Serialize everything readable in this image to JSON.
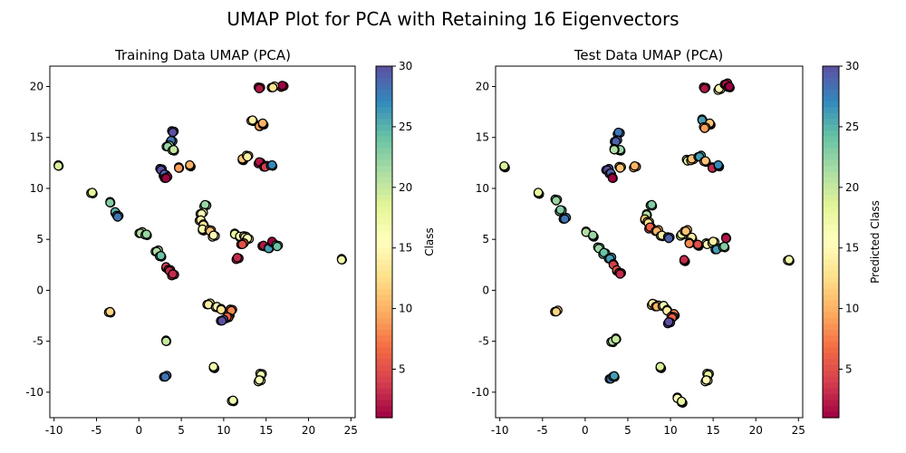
{
  "suptitle": "UMAP Plot for PCA with Retaining 16 Eigenvectors",
  "colormap": [
    "#9e0142",
    "#d53e4f",
    "#f46d43",
    "#fdae61",
    "#fee08b",
    "#ffffbf",
    "#e6f598",
    "#abdda4",
    "#66c2a5",
    "#3288bd",
    "#5e4fa2"
  ],
  "point_edge_color": "#000000",
  "chart_data": [
    {
      "type": "scatter",
      "title": "Training Data UMAP (PCA)",
      "xlabel": "",
      "ylabel": "",
      "xlim": [
        -10.5,
        25.5
      ],
      "ylim": [
        -12.5,
        22
      ],
      "xticks": [
        -10,
        -5,
        0,
        5,
        10,
        15,
        20,
        25
      ],
      "yticks": [
        -10,
        -5,
        0,
        5,
        10,
        15,
        20
      ],
      "colorbar": {
        "label": "Class",
        "range": [
          1,
          30
        ],
        "ticks": [
          5,
          10,
          15,
          20,
          25,
          30
        ]
      },
      "points": [
        {
          "x": 14.2,
          "y": 19.8,
          "class": 2
        },
        {
          "x": 16.9,
          "y": 20.1,
          "class": 1
        },
        {
          "x": 15.8,
          "y": 19.9,
          "class": 13
        },
        {
          "x": 13.4,
          "y": 16.7,
          "class": 14
        },
        {
          "x": 14.2,
          "y": 16.1,
          "class": 9
        },
        {
          "x": 14.6,
          "y": 16.4,
          "class": 10
        },
        {
          "x": 4.0,
          "y": 15.5,
          "class": 30
        },
        {
          "x": 3.8,
          "y": 14.7,
          "class": 28
        },
        {
          "x": 3.4,
          "y": 14.1,
          "class": 22
        },
        {
          "x": 4.1,
          "y": 13.8,
          "class": 20
        },
        {
          "x": -9.5,
          "y": 12.2,
          "class": 19
        },
        {
          "x": 12.2,
          "y": 12.9,
          "class": 11
        },
        {
          "x": 12.8,
          "y": 13.1,
          "class": 14
        },
        {
          "x": 14.2,
          "y": 12.6,
          "class": 2
        },
        {
          "x": 14.9,
          "y": 12.1,
          "class": 4
        },
        {
          "x": 15.7,
          "y": 12.3,
          "class": 27
        },
        {
          "x": 4.7,
          "y": 12.0,
          "class": 9
        },
        {
          "x": 6.0,
          "y": 12.3,
          "class": 10
        },
        {
          "x": 2.6,
          "y": 11.8,
          "class": 30
        },
        {
          "x": 3.0,
          "y": 11.4,
          "class": 29
        },
        {
          "x": 3.2,
          "y": 11.0,
          "class": 1
        },
        {
          "x": -5.5,
          "y": 9.6,
          "class": 18
        },
        {
          "x": -3.4,
          "y": 8.6,
          "class": 23
        },
        {
          "x": -2.8,
          "y": 7.7,
          "class": 25
        },
        {
          "x": -2.5,
          "y": 7.2,
          "class": 28
        },
        {
          "x": 7.8,
          "y": 8.4,
          "class": 22
        },
        {
          "x": 7.4,
          "y": 7.5,
          "class": 16
        },
        {
          "x": 7.3,
          "y": 6.9,
          "class": 14
        },
        {
          "x": 7.6,
          "y": 6.4,
          "class": 13
        },
        {
          "x": 7.5,
          "y": 6.0,
          "class": 17
        },
        {
          "x": 8.4,
          "y": 5.8,
          "class": 11
        },
        {
          "x": 8.8,
          "y": 5.4,
          "class": 15
        },
        {
          "x": 0.2,
          "y": 5.6,
          "class": 21
        },
        {
          "x": 0.9,
          "y": 5.5,
          "class": 22
        },
        {
          "x": 11.3,
          "y": 5.5,
          "class": 18
        },
        {
          "x": 11.9,
          "y": 5.3,
          "class": 15
        },
        {
          "x": 12.5,
          "y": 5.2,
          "class": 14
        },
        {
          "x": 12.8,
          "y": 5.1,
          "class": 16
        },
        {
          "x": 12.2,
          "y": 4.5,
          "class": 5
        },
        {
          "x": 14.7,
          "y": 4.4,
          "class": 2
        },
        {
          "x": 15.3,
          "y": 4.1,
          "class": 26
        },
        {
          "x": 15.7,
          "y": 4.8,
          "class": 1
        },
        {
          "x": 16.3,
          "y": 4.3,
          "class": 24
        },
        {
          "x": 11.6,
          "y": 3.2,
          "class": 3
        },
        {
          "x": 2.1,
          "y": 3.8,
          "class": 21
        },
        {
          "x": 2.6,
          "y": 3.4,
          "class": 24
        },
        {
          "x": 23.9,
          "y": 3.0,
          "class": 17
        },
        {
          "x": 3.2,
          "y": 2.3,
          "class": 4
        },
        {
          "x": 3.6,
          "y": 1.9,
          "class": 3
        },
        {
          "x": 4.0,
          "y": 1.6,
          "class": 3
        },
        {
          "x": 8.2,
          "y": -1.4,
          "class": 14
        },
        {
          "x": 9.2,
          "y": -1.6,
          "class": 15
        },
        {
          "x": 9.7,
          "y": -1.9,
          "class": 13
        },
        {
          "x": 10.6,
          "y": -2.3,
          "class": 19
        },
        {
          "x": 10.9,
          "y": -2.0,
          "class": 8
        },
        {
          "x": 10.4,
          "y": -2.6,
          "class": 6
        },
        {
          "x": 9.8,
          "y": -3.0,
          "class": 30
        },
        {
          "x": -3.4,
          "y": -2.1,
          "class": 12
        },
        {
          "x": 3.2,
          "y": -5.0,
          "class": 20
        },
        {
          "x": 8.8,
          "y": -7.5,
          "class": 17
        },
        {
          "x": 14.4,
          "y": -8.3,
          "class": 17
        },
        {
          "x": 14.2,
          "y": -8.8,
          "class": 16
        },
        {
          "x": 3.1,
          "y": -8.5,
          "class": 28
        },
        {
          "x": 11.1,
          "y": -10.8,
          "class": 17
        }
      ]
    },
    {
      "type": "scatter",
      "title": "Test Data UMAP (PCA)",
      "xlabel": "",
      "ylabel": "",
      "xlim": [
        -10.5,
        25.5
      ],
      "ylim": [
        -12.5,
        22
      ],
      "xticks": [
        -10,
        -5,
        0,
        5,
        10,
        15,
        20,
        25
      ],
      "yticks": [
        -10,
        -5,
        0,
        5,
        10,
        15,
        20
      ],
      "colorbar": {
        "label": "Predicted Class",
        "range": [
          1,
          30
        ],
        "ticks": [
          5,
          10,
          15,
          20,
          25,
          30
        ]
      },
      "points": [
        {
          "x": 14.0,
          "y": 19.8,
          "class": 2
        },
        {
          "x": 15.7,
          "y": 19.8,
          "class": 15
        },
        {
          "x": 16.5,
          "y": 20.2,
          "class": 2
        },
        {
          "x": 16.9,
          "y": 20.0,
          "class": 1
        },
        {
          "x": 13.7,
          "y": 16.7,
          "class": 26
        },
        {
          "x": 14.6,
          "y": 16.4,
          "class": 11
        },
        {
          "x": 14.0,
          "y": 15.9,
          "class": 9
        },
        {
          "x": 3.9,
          "y": 15.5,
          "class": 28
        },
        {
          "x": 3.6,
          "y": 14.6,
          "class": 29
        },
        {
          "x": 4.1,
          "y": 13.8,
          "class": 22
        },
        {
          "x": 3.4,
          "y": 13.8,
          "class": 21
        },
        {
          "x": -9.5,
          "y": 12.2,
          "class": 19
        },
        {
          "x": 12.0,
          "y": 12.7,
          "class": 18
        },
        {
          "x": 12.5,
          "y": 12.9,
          "class": 11
        },
        {
          "x": 13.4,
          "y": 13.1,
          "class": 26
        },
        {
          "x": 14.1,
          "y": 12.7,
          "class": 11
        },
        {
          "x": 14.9,
          "y": 12.0,
          "class": 3
        },
        {
          "x": 15.6,
          "y": 12.3,
          "class": 27
        },
        {
          "x": 4.1,
          "y": 12.0,
          "class": 11
        },
        {
          "x": 5.8,
          "y": 12.2,
          "class": 10
        },
        {
          "x": 2.6,
          "y": 11.8,
          "class": 30
        },
        {
          "x": 3.0,
          "y": 11.5,
          "class": 29
        },
        {
          "x": 3.2,
          "y": 11.0,
          "class": 1
        },
        {
          "x": -5.5,
          "y": 9.6,
          "class": 18
        },
        {
          "x": -3.4,
          "y": 8.8,
          "class": 22
        },
        {
          "x": -2.9,
          "y": 7.9,
          "class": 23
        },
        {
          "x": -2.4,
          "y": 7.0,
          "class": 28
        },
        {
          "x": 7.8,
          "y": 8.4,
          "class": 23
        },
        {
          "x": 7.2,
          "y": 7.4,
          "class": 21
        },
        {
          "x": 7.0,
          "y": 7.0,
          "class": 11
        },
        {
          "x": 7.4,
          "y": 6.6,
          "class": 13
        },
        {
          "x": 7.6,
          "y": 6.2,
          "class": 6
        },
        {
          "x": 8.4,
          "y": 5.8,
          "class": 10
        },
        {
          "x": 9.0,
          "y": 5.4,
          "class": 14
        },
        {
          "x": 0.1,
          "y": 5.7,
          "class": 21
        },
        {
          "x": 0.9,
          "y": 5.4,
          "class": 22
        },
        {
          "x": 9.8,
          "y": 5.1,
          "class": 29
        },
        {
          "x": 11.3,
          "y": 5.5,
          "class": 18
        },
        {
          "x": 11.8,
          "y": 5.8,
          "class": 11
        },
        {
          "x": 12.5,
          "y": 5.2,
          "class": 14
        },
        {
          "x": 12.2,
          "y": 4.6,
          "class": 8
        },
        {
          "x": 13.2,
          "y": 4.5,
          "class": 5
        },
        {
          "x": 14.3,
          "y": 4.5,
          "class": 15
        },
        {
          "x": 15.0,
          "y": 4.8,
          "class": 14
        },
        {
          "x": 15.4,
          "y": 4.0,
          "class": 26
        },
        {
          "x": 16.3,
          "y": 4.3,
          "class": 23
        },
        {
          "x": 16.5,
          "y": 5.1,
          "class": 2
        },
        {
          "x": 11.6,
          "y": 3.0,
          "class": 3
        },
        {
          "x": 1.6,
          "y": 4.1,
          "class": 22
        },
        {
          "x": 2.2,
          "y": 3.7,
          "class": 24
        },
        {
          "x": 2.9,
          "y": 3.1,
          "class": 26
        },
        {
          "x": 23.9,
          "y": 3.0,
          "class": 17
        },
        {
          "x": 3.3,
          "y": 2.5,
          "class": 4
        },
        {
          "x": 3.7,
          "y": 2.0,
          "class": 5
        },
        {
          "x": 4.1,
          "y": 1.6,
          "class": 3
        },
        {
          "x": 7.9,
          "y": -1.3,
          "class": 14
        },
        {
          "x": 8.4,
          "y": -1.6,
          "class": 10
        },
        {
          "x": 9.2,
          "y": -1.5,
          "class": 17
        },
        {
          "x": 9.6,
          "y": -2.0,
          "class": 14
        },
        {
          "x": 10.4,
          "y": -2.3,
          "class": 8
        },
        {
          "x": 10.2,
          "y": -2.7,
          "class": 6
        },
        {
          "x": 9.8,
          "y": -3.1,
          "class": 30
        },
        {
          "x": -3.4,
          "y": -2.1,
          "class": 12
        },
        {
          "x": 3.2,
          "y": -5.0,
          "class": 21
        },
        {
          "x": 3.6,
          "y": -4.8,
          "class": 20
        },
        {
          "x": 8.8,
          "y": -7.5,
          "class": 19
        },
        {
          "x": 14.4,
          "y": -8.3,
          "class": 18
        },
        {
          "x": 14.2,
          "y": -8.8,
          "class": 15
        },
        {
          "x": 3.0,
          "y": -8.7,
          "class": 28
        },
        {
          "x": 3.4,
          "y": -8.4,
          "class": 26
        },
        {
          "x": 10.8,
          "y": -10.6,
          "class": 16
        },
        {
          "x": 11.3,
          "y": -10.9,
          "class": 18
        }
      ]
    }
  ]
}
